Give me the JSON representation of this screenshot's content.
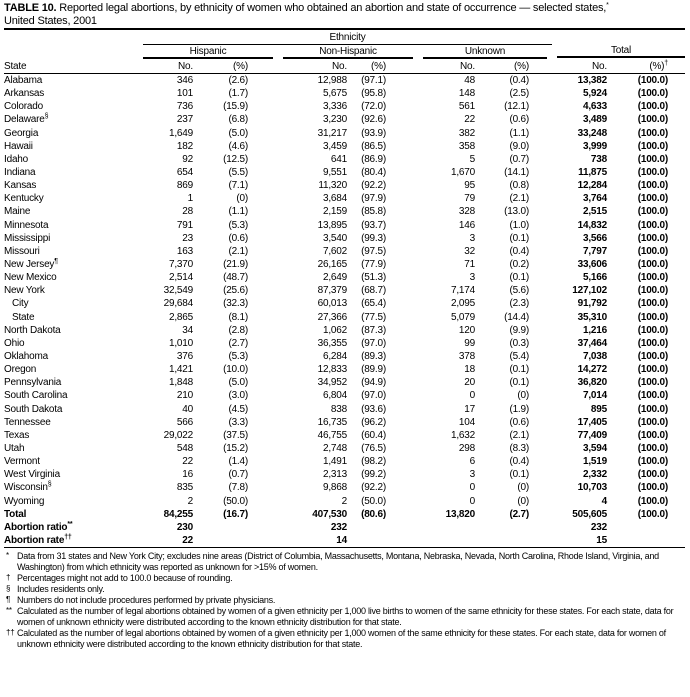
{
  "title": {
    "label": "TABLE 10.",
    "text": " Reported legal abortions, by ethnicity of women who obtained an abortion and state of occurrence — selected states,",
    "sup": "*",
    "line2": "United States, 2001"
  },
  "header": {
    "ethnicity": "Ethnicity",
    "groups": [
      "Hispanic",
      "Non-Hispanic",
      "Unknown",
      "Total"
    ],
    "state": "State",
    "no": "No.",
    "pct": "(%)",
    "pct_sup": "†"
  },
  "rows": [
    [
      "Alabama",
      "",
      "346",
      "(2.6)",
      "12,988",
      "(97.1)",
      "48",
      "(0.4)",
      "13,382",
      "(100.0)"
    ],
    [
      "Arkansas",
      "",
      "101",
      "(1.7)",
      "5,675",
      "(95.8)",
      "148",
      "(2.5)",
      "5,924",
      "(100.0)"
    ],
    [
      "Colorado",
      "",
      "736",
      "(15.9)",
      "3,336",
      "(72.0)",
      "561",
      "(12.1)",
      "4,633",
      "(100.0)"
    ],
    [
      "Delaware",
      "§",
      "237",
      "(6.8)",
      "3,230",
      "(92.6)",
      "22",
      "(0.6)",
      "3,489",
      "(100.0)"
    ],
    [
      "Georgia",
      "",
      "1,649",
      "(5.0)",
      "31,217",
      "(93.9)",
      "382",
      "(1.1)",
      "33,248",
      "(100.0)"
    ],
    [
      "Hawaii",
      "",
      "182",
      "(4.6)",
      "3,459",
      "(86.5)",
      "358",
      "(9.0)",
      "3,999",
      "(100.0)"
    ],
    [
      "Idaho",
      "",
      "92",
      "(12.5)",
      "641",
      "(86.9)",
      "5",
      "(0.7)",
      "738",
      "(100.0)"
    ],
    [
      "Indiana",
      "",
      "654",
      "(5.5)",
      "9,551",
      "(80.4)",
      "1,670",
      "(14.1)",
      "11,875",
      "(100.0)"
    ],
    [
      "Kansas",
      "",
      "869",
      "(7.1)",
      "11,320",
      "(92.2)",
      "95",
      "(0.8)",
      "12,284",
      "(100.0)"
    ],
    [
      "Kentucky",
      "",
      "1",
      "(0)",
      "3,684",
      "(97.9)",
      "79",
      "(2.1)",
      "3,764",
      "(100.0)"
    ],
    [
      "Maine",
      "",
      "28",
      "(1.1)",
      "2,159",
      "(85.8)",
      "328",
      "(13.0)",
      "2,515",
      "(100.0)"
    ],
    [
      "Minnesota",
      "",
      "791",
      "(5.3)",
      "13,895",
      "(93.7)",
      "146",
      "(1.0)",
      "14,832",
      "(100.0)"
    ],
    [
      "Mississippi",
      "",
      "23",
      "(0.6)",
      "3,540",
      "(99.3)",
      "3",
      "(0.1)",
      "3,566",
      "(100.0)"
    ],
    [
      "Missouri",
      "",
      "163",
      "(2.1)",
      "7,602",
      "(97.5)",
      "32",
      "(0.4)",
      "7,797",
      "(100.0)"
    ],
    [
      "New Jersey",
      "¶",
      "7,370",
      "(21.9)",
      "26,165",
      "(77.9)",
      "71",
      "(0.2)",
      "33,606",
      "(100.0)"
    ],
    [
      "New Mexico",
      "",
      "2,514",
      "(48.7)",
      "2,649",
      "(51.3)",
      "3",
      "(0.1)",
      "5,166",
      "(100.0)"
    ],
    [
      "New York",
      "",
      "32,549",
      "(25.6)",
      "87,379",
      "(68.7)",
      "7,174",
      "(5.6)",
      "127,102",
      "(100.0)"
    ],
    [
      "City",
      "",
      "29,684",
      "(32.3)",
      "60,013",
      "(65.4)",
      "2,095",
      "(2.3)",
      "91,792",
      "(100.0)"
    ],
    [
      "State",
      "",
      "2,865",
      "(8.1)",
      "27,366",
      "(77.5)",
      "5,079",
      "(14.4)",
      "35,310",
      "(100.0)"
    ],
    [
      "North Dakota",
      "",
      "34",
      "(2.8)",
      "1,062",
      "(87.3)",
      "120",
      "(9.9)",
      "1,216",
      "(100.0)"
    ],
    [
      "Ohio",
      "",
      "1,010",
      "(2.7)",
      "36,355",
      "(97.0)",
      "99",
      "(0.3)",
      "37,464",
      "(100.0)"
    ],
    [
      "Oklahoma",
      "",
      "376",
      "(5.3)",
      "6,284",
      "(89.3)",
      "378",
      "(5.4)",
      "7,038",
      "(100.0)"
    ],
    [
      "Oregon",
      "",
      "1,421",
      "(10.0)",
      "12,833",
      "(89.9)",
      "18",
      "(0.1)",
      "14,272",
      "(100.0)"
    ],
    [
      "Pennsylvania",
      "",
      "1,848",
      "(5.0)",
      "34,952",
      "(94.9)",
      "20",
      "(0.1)",
      "36,820",
      "(100.0)"
    ],
    [
      "South Carolina",
      "",
      "210",
      "(3.0)",
      "6,804",
      "(97.0)",
      "0",
      "(0)",
      "7,014",
      "(100.0)"
    ],
    [
      "South Dakota",
      "",
      "40",
      "(4.5)",
      "838",
      "(93.6)",
      "17",
      "(1.9)",
      "895",
      "(100.0)"
    ],
    [
      "Tennessee",
      "",
      "566",
      "(3.3)",
      "16,735",
      "(96.2)",
      "104",
      "(0.6)",
      "17,405",
      "(100.0)"
    ],
    [
      "Texas",
      "",
      "29,022",
      "(37.5)",
      "46,755",
      "(60.4)",
      "1,632",
      "(2.1)",
      "77,409",
      "(100.0)"
    ],
    [
      "Utah",
      "",
      "548",
      "(15.2)",
      "2,748",
      "(76.5)",
      "298",
      "(8.3)",
      "3,594",
      "(100.0)"
    ],
    [
      "Vermont",
      "",
      "22",
      "(1.4)",
      "1,491",
      "(98.2)",
      "6",
      "(0.4)",
      "1,519",
      "(100.0)"
    ],
    [
      "West Virginia",
      "",
      "16",
      "(0.7)",
      "2,313",
      "(99.2)",
      "3",
      "(0.1)",
      "2,332",
      "(100.0)"
    ],
    [
      "Wisconsin",
      "§",
      "835",
      "(7.8)",
      "9,868",
      "(92.2)",
      "0",
      "(0)",
      "10,703",
      "(100.0)"
    ],
    [
      "Wyoming",
      "",
      "2",
      "(50.0)",
      "2",
      "(50.0)",
      "0",
      "(0)",
      "4",
      "(100.0)"
    ]
  ],
  "summary_rows": [
    [
      "Total",
      "",
      "84,255",
      "(16.7)",
      "407,530",
      "(80.6)",
      "13,820",
      "(2.7)",
      "505,605",
      "(100.0)"
    ],
    [
      "Abortion ratio",
      "**",
      "230",
      "",
      "232",
      "",
      "",
      "",
      "232",
      ""
    ],
    [
      "Abortion rate",
      "††",
      "22",
      "",
      "14",
      "",
      "",
      "",
      "15",
      ""
    ]
  ],
  "footnotes": [
    {
      "mark": "*",
      "text": "Data from 31 states and New York City; excludes nine areas (District of Columbia, Massachusetts, Montana, Nebraska, Nevada, North Carolina, Rhode Island, Virginia, and Washington) from which ethnicity was reported as unknown for >15% of women."
    },
    {
      "mark": "†",
      "text": "Percentages might not add to 100.0 because of rounding."
    },
    {
      "mark": "§",
      "text": "Includes residents only."
    },
    {
      "mark": "¶",
      "text": "Numbers do not include procedures performed by private physicians."
    },
    {
      "mark": "**",
      "text": "Calculated as the number of legal abortions obtained by women of a given ethnicity per 1,000 live births to women of the same ethnicity for these states. For each state, data for women of unknown ethnicity were distributed according to the known ethnicity distribution for that state."
    },
    {
      "mark": "††",
      "text": "Calculated as the number of legal abortions obtained by women of a given ethnicity per 1,000 women of the same ethnicity for these states. For each state, data for women of unknown ethnicity were distributed according to the known ethnicity distribution for that state."
    }
  ]
}
